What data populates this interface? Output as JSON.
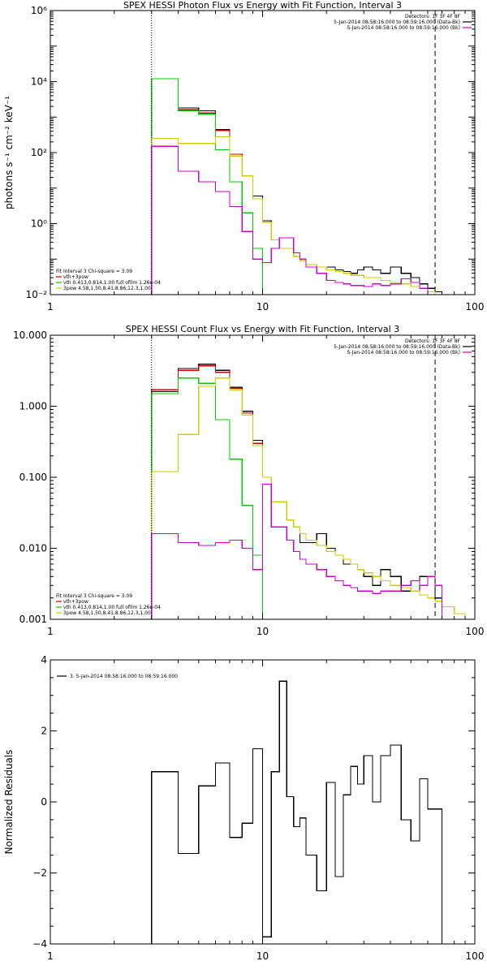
{
  "chart_data": [
    {
      "type": "line",
      "title": "SPEX HESSI Photon Flux vs Energy with Fit Function, Interval 3",
      "ylabel": "photons s⁻¹ cm⁻² keV⁻¹",
      "xlabel": "",
      "xscale": "log",
      "yscale": "log",
      "xlim": [
        1,
        100
      ],
      "ylim": [
        0.01,
        1000000
      ],
      "x_ticks": [
        1,
        10,
        100
      ],
      "x_tick_labels": [
        "1",
        "10",
        "100"
      ],
      "y_ticks": [
        0.01,
        1,
        100,
        10000,
        1000000
      ],
      "y_tick_labels": [
        "10⁻²",
        "10⁰",
        "10²",
        "10⁴",
        "10⁶"
      ],
      "grid": false,
      "vlines": [
        {
          "x": 3,
          "style": "dotted"
        },
        {
          "x": 65,
          "style": "dashed"
        }
      ],
      "legend_top_right": [
        {
          "text": "Detectors: 1F 3F 4F 8F",
          "color": "#000000"
        },
        {
          "text": "5-Jan-2014 08:58:16.000 to 08:59:16.000 (Data-Bk)",
          "color": "#000000"
        },
        {
          "text": "5-Jan-2014 08:58:16.000 to 08:59:16.000 (Bk)",
          "color": "#cc00cc"
        }
      ],
      "legend_bottom_left": [
        {
          "text": "Fit Interval 3   Chi-square = 3.09",
          "color": "#000000"
        },
        {
          "text": "vth+3pow",
          "color": "#cc0000"
        },
        {
          "text": "vth 0.413,0.814,1.00  full ofilm 1.26e-04",
          "color": "#00cc00"
        },
        {
          "text": "3pow 4.58,1.50,8.41,8.86,12.3,1.00",
          "color": "#cccc00"
        }
      ],
      "bin_edges": [
        3,
        3.5,
        4,
        4.5,
        5,
        5.5,
        6,
        6.5,
        7,
        7.5,
        8,
        9,
        10,
        11,
        12,
        13,
        14,
        15,
        16,
        18,
        20,
        22,
        24,
        26,
        28,
        30,
        33,
        36,
        40,
        45,
        50,
        55,
        60,
        65,
        70
      ],
      "series": [
        {
          "name": "Data-Bk",
          "color": "#000000",
          "values": [
            12000,
            12000,
            1800,
            1800,
            1500,
            1500,
            450,
            450,
            90,
            90,
            22,
            6,
            1.2,
            0.35,
            0.2,
            0.2,
            0.12,
            0.09,
            0.07,
            0.06,
            0.06,
            0.05,
            0.045,
            0.04,
            0.05,
            0.06,
            0.05,
            0.04,
            0.06,
            0.04,
            0.03,
            0.02,
            0.015,
            0.012
          ]
        },
        {
          "name": "vth+3pow",
          "color": "#cc0000",
          "values": [
            12000,
            12000,
            1600,
            1600,
            1300,
            1300,
            420,
            420,
            90,
            90,
            22,
            5,
            1.1,
            0.35,
            0.2,
            0.2,
            0.12,
            0.09,
            0.07,
            0.06,
            0.05,
            0.045,
            0.04,
            0.035,
            0.035,
            0.03,
            0.03,
            0.025,
            0.022,
            0.02,
            0.017,
            0.015,
            0.012,
            0.01
          ]
        },
        {
          "name": "vth",
          "color": "#00cc00",
          "values": [
            12000,
            12000,
            1500,
            1500,
            1200,
            1200,
            120,
            120,
            15,
            15,
            2,
            0.2,
            0.01,
            null,
            null,
            null,
            null,
            null,
            null,
            null,
            null,
            null,
            null,
            null,
            null,
            null,
            null,
            null,
            null,
            null,
            null,
            null,
            null,
            null
          ]
        },
        {
          "name": "3pow",
          "color": "#cccc00",
          "values": [
            250,
            250,
            180,
            180,
            180,
            180,
            280,
            280,
            80,
            80,
            22,
            5,
            1.1,
            0.35,
            0.2,
            0.2,
            0.12,
            0.09,
            0.07,
            0.06,
            0.05,
            0.045,
            0.04,
            0.035,
            0.035,
            0.03,
            0.03,
            0.025,
            0.022,
            0.02,
            0.017,
            0.015,
            0.012,
            0.01
          ]
        },
        {
          "name": "Bk",
          "color": "#cc00cc",
          "values": [
            150,
            150,
            30,
            30,
            15,
            15,
            8,
            8,
            3,
            3,
            0.6,
            0.1,
            0.08,
            0.2,
            0.4,
            0.4,
            0.15,
            0.1,
            0.06,
            0.04,
            0.025,
            0.022,
            0.02,
            0.018,
            0.018,
            0.017,
            0.02,
            0.018,
            0.02,
            0.028,
            0.022,
            0.015,
            0.01,
            0.01
          ]
        }
      ]
    },
    {
      "type": "line",
      "title": "SPEX HESSI Count Flux vs Energy with Fit Function, Interval 3",
      "ylabel": "",
      "xlabel": "",
      "xscale": "log",
      "yscale": "log",
      "xlim": [
        1,
        100
      ],
      "ylim": [
        0.001,
        10
      ],
      "x_ticks": [
        1,
        10,
        100
      ],
      "x_tick_labels": [
        "1",
        "10",
        "100"
      ],
      "y_ticks": [
        0.001,
        0.01,
        0.1,
        1,
        10
      ],
      "y_tick_labels": [
        "0.001",
        "0.010",
        "0.100",
        "1.000",
        "10.000"
      ],
      "grid": false,
      "vlines": [
        {
          "x": 3,
          "style": "dotted"
        },
        {
          "x": 65,
          "style": "dashed"
        }
      ],
      "legend_top_right": [
        {
          "text": "Detectors: 1F 3F 4F 8F",
          "color": "#000000"
        },
        {
          "text": "5-Jan-2014 08:58:16.000 to 08:59:16.000 (Data-Bk)",
          "color": "#000000"
        },
        {
          "text": "5-Jan-2014 08:58:16.000 to 08:59:16.000 (Bk)",
          "color": "#cc00cc"
        }
      ],
      "legend_bottom_left": [
        {
          "text": "Fit Interval 3   Chi-square = 3.09",
          "color": "#000000"
        },
        {
          "text": "vth+3pow",
          "color": "#cc0000"
        },
        {
          "text": "vth 0.413,0.814,1.00  full ofilm 1.26e-04",
          "color": "#00cc00"
        },
        {
          "text": "3pow 4.58,1.50,8.41,8.86,12.3,1.00",
          "color": "#cccc00"
        }
      ],
      "bin_edges": [
        3,
        3.5,
        4,
        4.5,
        5,
        5.5,
        6,
        6.5,
        7,
        7.5,
        8,
        9,
        10,
        11,
        12,
        13,
        14,
        15,
        16,
        18,
        20,
        22,
        24,
        26,
        28,
        30,
        33,
        36,
        40,
        45,
        50,
        55,
        60,
        65,
        70,
        80,
        90,
        100
      ],
      "series": [
        {
          "name": "Data-Bk",
          "color": "#000000",
          "values": [
            1.6,
            1.6,
            3.4,
            3.4,
            3.9,
            3.9,
            3.2,
            3.2,
            1.85,
            1.85,
            0.85,
            0.33,
            0.1,
            0.045,
            0.045,
            0.025,
            0.02,
            0.012,
            0.012,
            0.016,
            0.01,
            0.008,
            0.006,
            0.006,
            0.005,
            0.004,
            0.003,
            0.005,
            0.004,
            0.0025,
            0.0025,
            0.004,
            0.004,
            0.002,
            null,
            null,
            null
          ]
        },
        {
          "name": "vth+3pow",
          "color": "#cc0000",
          "values": [
            1.7,
            1.7,
            3.2,
            3.2,
            3.7,
            3.7,
            3.0,
            3.0,
            1.8,
            1.8,
            0.8,
            0.3,
            0.1,
            0.045,
            0.045,
            0.025,
            0.02,
            0.016,
            0.013,
            0.011,
            0.009,
            0.008,
            0.007,
            0.006,
            0.005,
            0.0045,
            0.004,
            0.0035,
            0.003,
            0.0028,
            0.0025,
            0.0022,
            0.002,
            0.0018,
            null,
            null,
            null
          ]
        },
        {
          "name": "vth",
          "color": "#00cc00",
          "values": [
            1.5,
            1.5,
            2.5,
            2.5,
            2.1,
            2.1,
            0.65,
            0.65,
            0.18,
            0.18,
            0.04,
            0.008,
            0.0009,
            null,
            null,
            null,
            null,
            null,
            null,
            null,
            null,
            null,
            null,
            null,
            null,
            null,
            null,
            null,
            null,
            null,
            null,
            null,
            null,
            null,
            null,
            null,
            null
          ]
        },
        {
          "name": "3pow",
          "color": "#cccc00",
          "values": [
            0.12,
            0.12,
            0.4,
            0.4,
            1.9,
            1.9,
            2.5,
            2.5,
            1.7,
            1.7,
            0.75,
            0.28,
            0.1,
            0.045,
            0.045,
            0.025,
            0.02,
            0.016,
            0.013,
            0.011,
            0.009,
            0.008,
            0.007,
            0.006,
            0.005,
            0.0045,
            0.004,
            0.0035,
            0.003,
            0.0028,
            0.0025,
            0.0022,
            0.002,
            0.0018,
            0.0015,
            0.0012,
            0.001
          ]
        },
        {
          "name": "Bk",
          "color": "#cc00cc",
          "values": [
            0.016,
            0.016,
            0.012,
            0.012,
            0.011,
            0.011,
            0.012,
            0.012,
            0.013,
            0.013,
            0.01,
            0.005,
            0.08,
            0.02,
            0.02,
            0.013,
            0.009,
            0.007,
            0.006,
            0.005,
            0.004,
            0.0035,
            0.003,
            0.0028,
            0.0025,
            0.0025,
            0.0023,
            0.0025,
            0.0025,
            0.003,
            0.0035,
            0.003,
            0.004,
            0.003,
            null,
            null,
            null
          ]
        }
      ]
    },
    {
      "type": "line",
      "title": "",
      "ylabel": "Normalized Residuals",
      "xlabel": "",
      "xscale": "log",
      "yscale": "linear",
      "xlim": [
        1,
        100
      ],
      "ylim": [
        -4,
        4
      ],
      "x_ticks": [
        1,
        10,
        100
      ],
      "x_tick_labels": [
        "1",
        "10",
        "100"
      ],
      "y_ticks": [
        -4,
        -2,
        0,
        2,
        4
      ],
      "y_tick_labels": [
        "−4",
        "−2",
        "0",
        "2",
        "4"
      ],
      "grid": false,
      "vlines": [],
      "legend_top_left": [
        {
          "text": "3.  5-Jan-2014 08:58:16.000 to 08:59:16.000",
          "color": "#000000"
        }
      ],
      "bin_edges": [
        3,
        3.5,
        4,
        4.5,
        5,
        5.5,
        6,
        6.5,
        7,
        7.5,
        8,
        9,
        10,
        11,
        12,
        13,
        14,
        15,
        16,
        18,
        20,
        22,
        24,
        26,
        28,
        30,
        33,
        36,
        40,
        45,
        50,
        55,
        60,
        65,
        70
      ],
      "series": [
        {
          "name": "",
          "color": "#000000",
          "values": [
            0.85,
            0.85,
            -1.45,
            -1.45,
            0.45,
            0.45,
            1.1,
            1.1,
            -1.0,
            -1.0,
            -0.6,
            1.5,
            -3.8,
            0.85,
            3.4,
            0.15,
            -0.7,
            -0.45,
            -1.5,
            -2.5,
            0.55,
            -2.1,
            0.2,
            1.0,
            0.5,
            1.3,
            0.0,
            1.3,
            1.6,
            -0.5,
            -1.1,
            0.65,
            -0.2,
            -0.2
          ]
        }
      ]
    }
  ]
}
